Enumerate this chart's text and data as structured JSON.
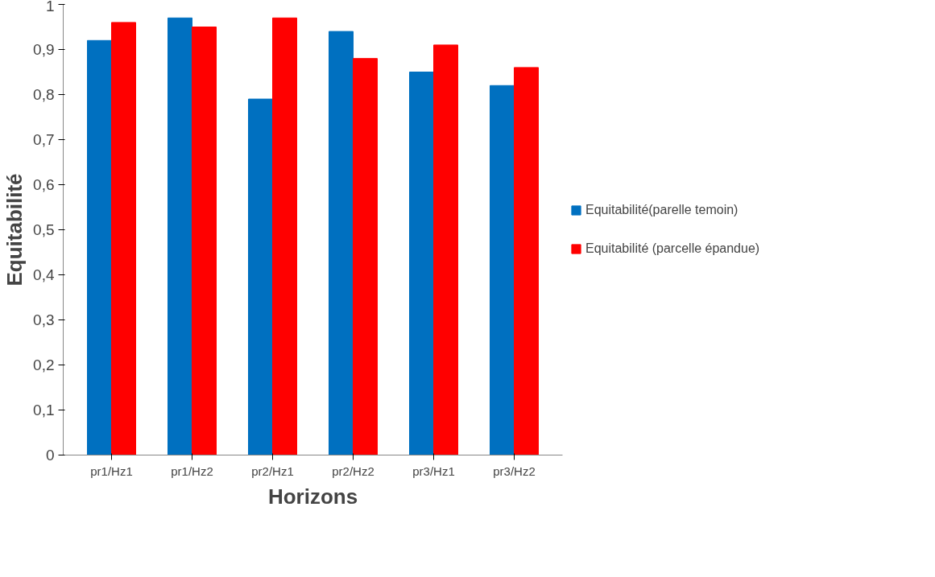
{
  "chart_data": {
    "type": "bar",
    "xlabel": "Horizons",
    "ylabel": "Equitabilité",
    "categories": [
      "pr1/Hz1",
      "pr1/Hz2",
      "pr2/Hz1",
      "pr2/Hz2",
      "pr3/Hz1",
      "pr3/Hz2"
    ],
    "series": [
      {
        "name": "Equitabilité(parelle temoin)",
        "color": "#0070c0",
        "values": [
          0.92,
          0.97,
          0.79,
          0.94,
          0.85,
          0.82
        ]
      },
      {
        "name": "Equitabilité (parcelle épandue)",
        "color": "#ff0000",
        "values": [
          0.96,
          0.95,
          0.97,
          0.88,
          0.91,
          0.86
        ]
      }
    ],
    "ylim": [
      0,
      1
    ],
    "yticks": [
      0,
      {
        "value": 0.1,
        "label": "0,1"
      },
      {
        "value": 0.2,
        "label": "0,2"
      },
      {
        "value": 0.3,
        "label": "0,3"
      },
      {
        "value": 0.4,
        "label": "0,4"
      },
      {
        "value": 0.5,
        "label": "0,5"
      },
      {
        "value": 0.6,
        "label": "0,6"
      },
      {
        "value": 0.7,
        "label": "0,7"
      },
      {
        "value": 0.8,
        "label": "0,8"
      },
      {
        "value": 0.9,
        "label": "0,9"
      },
      1
    ],
    "grid": false,
    "legend": "right"
  }
}
